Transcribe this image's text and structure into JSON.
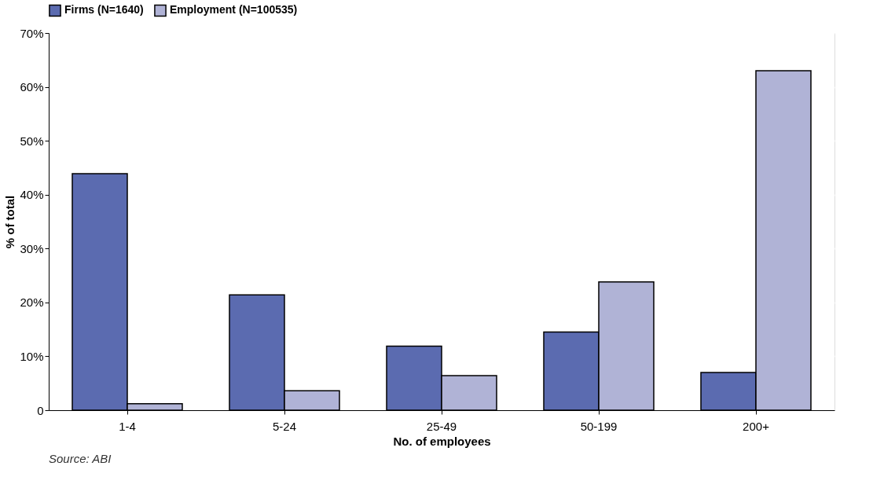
{
  "chart_data": {
    "type": "bar",
    "xlabel": "No. of employees",
    "ylabel": "% of total",
    "categories": [
      "1-4",
      "5-24",
      "25-49",
      "50-199",
      "200+"
    ],
    "series": [
      {
        "name": "Firms (N=1640)",
        "color": "#5b6bb0",
        "values": [
          43.9,
          21.4,
          11.9,
          14.5,
          7.0
        ]
      },
      {
        "name": "Employment (N=100535)",
        "color": "#b0b3d6",
        "values": [
          1.2,
          3.6,
          6.4,
          23.8,
          63.0
        ]
      }
    ],
    "ylim": [
      0,
      70
    ],
    "yticks": [
      0,
      {
        "value": 10,
        "label": "10%"
      },
      {
        "value": 20,
        "label": "20%"
      },
      {
        "value": 30,
        "label": "30%"
      },
      {
        "value": 40,
        "label": "40%"
      },
      {
        "value": 50,
        "label": "50%"
      },
      {
        "value": 60,
        "label": "60%"
      },
      {
        "value": 70,
        "label": "70%"
      }
    ],
    "grid": "y",
    "legend": "top left",
    "annotations": [
      "Source: ABI"
    ]
  }
}
